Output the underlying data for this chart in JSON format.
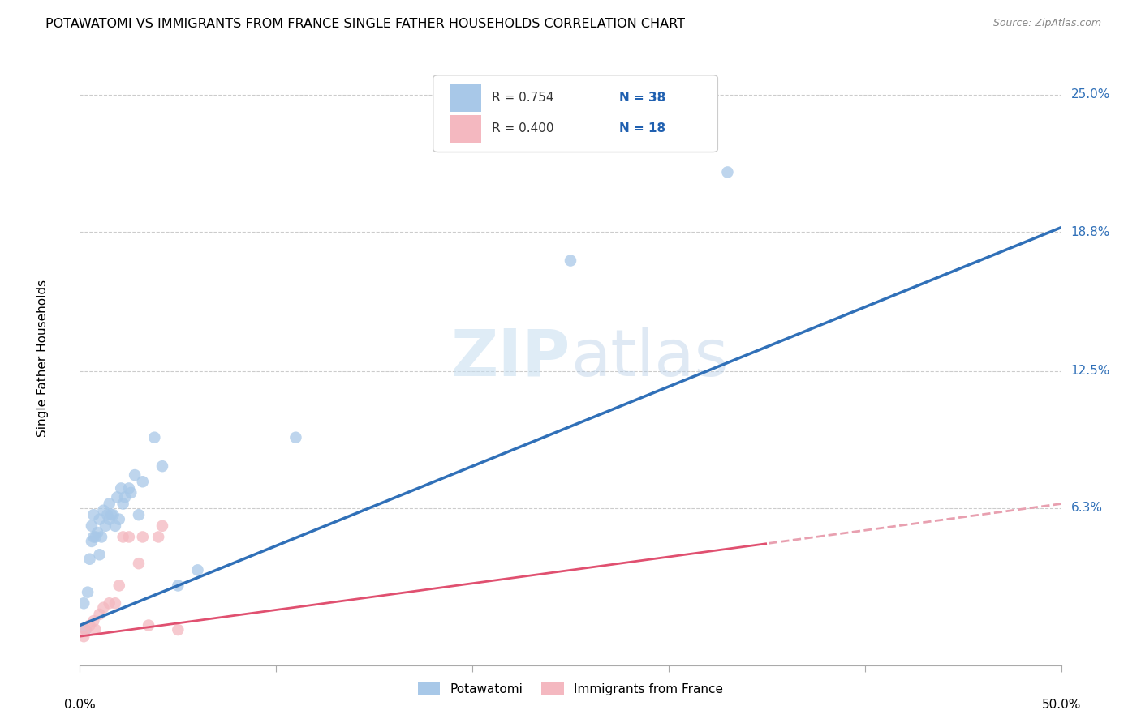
{
  "title": "POTAWATOMI VS IMMIGRANTS FROM FRANCE SINGLE FATHER HOUSEHOLDS CORRELATION CHART",
  "source": "Source: ZipAtlas.com",
  "ylabel": "Single Father Households",
  "ytick_labels": [
    "6.3%",
    "12.5%",
    "18.8%",
    "25.0%"
  ],
  "ytick_values": [
    0.063,
    0.125,
    0.188,
    0.25
  ],
  "xmin": 0.0,
  "xmax": 0.5,
  "ymin": -0.008,
  "ymax": 0.27,
  "r_potawatomi": 0.754,
  "n_potawatomi": 38,
  "r_france": 0.4,
  "n_france": 18,
  "legend_label1": "Potawatomi",
  "legend_label2": "Immigrants from France",
  "color_blue": "#a8c8e8",
  "color_pink": "#f4b8c0",
  "color_blue_line": "#3070b8",
  "color_pink_line": "#e05070",
  "color_pink_dashed": "#e8a0b0",
  "potawatomi_x": [
    0.002,
    0.003,
    0.004,
    0.005,
    0.006,
    0.006,
    0.007,
    0.007,
    0.008,
    0.009,
    0.01,
    0.01,
    0.011,
    0.012,
    0.013,
    0.014,
    0.015,
    0.015,
    0.016,
    0.017,
    0.018,
    0.019,
    0.02,
    0.021,
    0.022,
    0.023,
    0.025,
    0.026,
    0.028,
    0.03,
    0.032,
    0.038,
    0.042,
    0.05,
    0.06,
    0.11,
    0.25,
    0.33
  ],
  "potawatomi_y": [
    0.02,
    0.008,
    0.025,
    0.04,
    0.048,
    0.055,
    0.05,
    0.06,
    0.05,
    0.052,
    0.042,
    0.058,
    0.05,
    0.062,
    0.055,
    0.06,
    0.058,
    0.065,
    0.06,
    0.06,
    0.055,
    0.068,
    0.058,
    0.072,
    0.065,
    0.068,
    0.072,
    0.07,
    0.078,
    0.06,
    0.075,
    0.095,
    0.082,
    0.028,
    0.035,
    0.095,
    0.175,
    0.215
  ],
  "france_x": [
    0.002,
    0.003,
    0.005,
    0.007,
    0.008,
    0.01,
    0.012,
    0.015,
    0.018,
    0.02,
    0.022,
    0.025,
    0.03,
    0.032,
    0.035,
    0.04,
    0.042,
    0.05
  ],
  "france_y": [
    0.005,
    0.008,
    0.01,
    0.012,
    0.008,
    0.015,
    0.018,
    0.02,
    0.02,
    0.028,
    0.05,
    0.05,
    0.038,
    0.05,
    0.01,
    0.05,
    0.055,
    0.008
  ]
}
